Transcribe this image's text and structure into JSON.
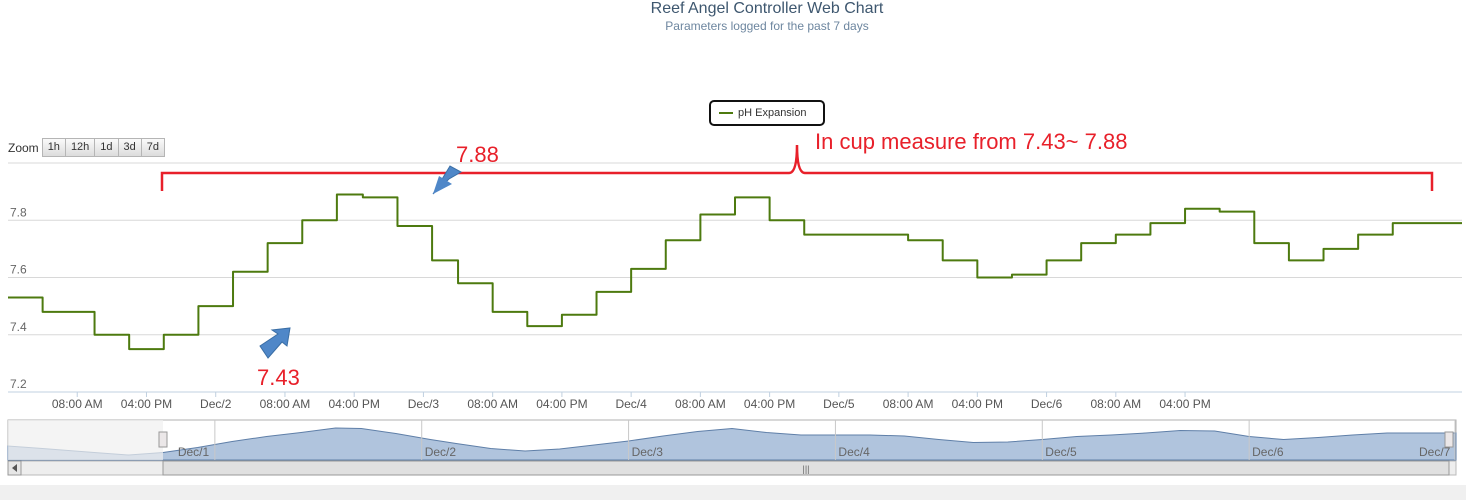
{
  "header": {
    "title": "Reef Angel Controller Web Chart",
    "subtitle": "Parameters logged for the past 7 days"
  },
  "zoom": {
    "label": "Zoom",
    "buttons": [
      "1h",
      "12h",
      "1d",
      "3d",
      "7d"
    ]
  },
  "colors": {
    "series": "#4d7a0f",
    "annotation": "#e8202a",
    "arrow": "#4f87c8",
    "navigator_fill": "#b0c4dd",
    "navigator_line": "#5f7fa8"
  },
  "annotations": {
    "range_text": "In cup measure from 7.43~ 7.88",
    "max_label": "7.88",
    "min_label": "7.43"
  },
  "navigator": {
    "labels": [
      "Dec/1",
      "Dec/2",
      "Dec/3",
      "Dec/4",
      "Dec/5",
      "Dec/6",
      "Dec/7"
    ],
    "scrollbar_grip": "|||"
  },
  "chart_data": {
    "type": "line",
    "title": "Reef Angel Controller Web Chart",
    "subtitle": "Parameters logged for the past 7 days",
    "series": [
      {
        "name": "pH Expansion",
        "x": [
          0,
          4,
          10,
          14,
          18,
          22,
          26,
          30,
          34,
          38,
          41,
          45,
          49,
          52,
          56,
          60,
          64,
          68,
          72,
          76,
          80,
          84,
          88,
          92,
          96,
          100,
          104,
          108,
          112,
          116,
          120,
          124,
          128,
          132,
          136,
          140,
          144,
          148,
          152,
          156,
          160,
          164,
          168
        ],
        "values": [
          7.53,
          7.48,
          7.4,
          7.35,
          7.4,
          7.5,
          7.62,
          7.72,
          7.8,
          7.89,
          7.88,
          7.78,
          7.66,
          7.58,
          7.48,
          7.43,
          7.47,
          7.55,
          7.63,
          7.73,
          7.82,
          7.88,
          7.8,
          7.75,
          7.75,
          7.75,
          7.73,
          7.66,
          7.6,
          7.61,
          7.66,
          7.72,
          7.75,
          7.79,
          7.84,
          7.83,
          7.72,
          7.66,
          7.7,
          7.75,
          7.79,
          7.79,
          7.79
        ]
      }
    ],
    "xlim": [
      0,
      168
    ],
    "ylim": [
      7.2,
      8.0
    ],
    "y_ticks": [
      7.2,
      7.4,
      7.6,
      7.8
    ],
    "x_tick_labels": [
      "08:00 AM",
      "04:00 PM",
      "Dec/2",
      "08:00 AM",
      "04:00 PM",
      "Dec/3",
      "08:00 AM",
      "04:00 PM",
      "Dec/4",
      "08:00 AM",
      "04:00 PM",
      "Dec/5",
      "08:00 AM",
      "04:00 PM",
      "Dec/6",
      "08:00 AM",
      "04:00 PM"
    ],
    "x_tick_hours": [
      8,
      16,
      24,
      32,
      40,
      48,
      56,
      64,
      72,
      80,
      88,
      96,
      104,
      112,
      120,
      128,
      136
    ],
    "grid": true,
    "legend": "top-center"
  }
}
